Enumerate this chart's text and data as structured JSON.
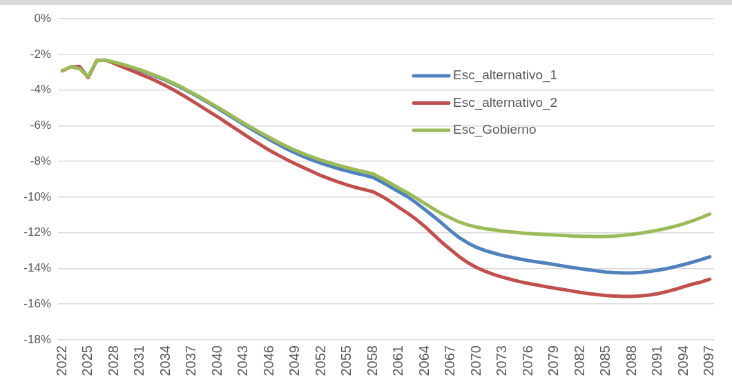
{
  "chart_data": {
    "type": "line",
    "categories": [
      "2022",
      null,
      null,
      "2025",
      null,
      null,
      "2028",
      null,
      null,
      "2031",
      null,
      null,
      "2034",
      null,
      null,
      "2037",
      null,
      null,
      "2040",
      null,
      null,
      "2043",
      null,
      null,
      "2046",
      null,
      null,
      "2049",
      null,
      null,
      "2052",
      null,
      null,
      "2055",
      null,
      null,
      "2058",
      null,
      null,
      "2061",
      null,
      null,
      "2064",
      null,
      null,
      "2067",
      null,
      null,
      "2070",
      null,
      null,
      "2073",
      null,
      null,
      "2076",
      null,
      null,
      "2079",
      null,
      null,
      "2082",
      null,
      null,
      "2085",
      null,
      null,
      "2088",
      null,
      null,
      "2091",
      null,
      null,
      "2094",
      null,
      null,
      "2097"
    ],
    "ylim": [
      -18,
      0
    ],
    "yticks": [
      {
        "value": 0,
        "label": "0%"
      },
      {
        "value": -2,
        "label": "-2%"
      },
      {
        "value": -4,
        "label": "-4%"
      },
      {
        "value": -6,
        "label": "-6%"
      },
      {
        "value": -8,
        "label": "-8%"
      },
      {
        "value": -10,
        "label": "-10%"
      },
      {
        "value": -12,
        "label": "-12%"
      },
      {
        "value": -14,
        "label": "-14%"
      },
      {
        "value": -16,
        "label": "-16%"
      },
      {
        "value": -18,
        "label": "-18%"
      }
    ],
    "grid": "y",
    "legend": "top right",
    "marker": "none",
    "line_style": "solid",
    "series": [
      {
        "name": "Esc_alternativo_1",
        "color": "#4f81bd",
        "values": [
          null,
          null,
          null,
          null,
          null,
          null,
          null,
          null,
          -2.73,
          -2.89,
          -3.07,
          -3.26,
          -3.46,
          -3.68,
          -3.92,
          -4.18,
          -4.45,
          -4.73,
          -5.02,
          -5.32,
          -5.62,
          -5.92,
          -6.21,
          -6.5,
          -6.78,
          -7.04,
          -7.3,
          -7.53,
          -7.74,
          -7.93,
          -8.1,
          -8.26,
          -8.41,
          -8.54,
          -8.66,
          -8.77,
          -8.9,
          -9.15,
          -9.42,
          -9.7,
          -9.98,
          -10.32,
          -10.7,
          -11.08,
          -11.48,
          -11.9,
          -12.28,
          -12.58,
          -12.82,
          -13.0,
          -13.14,
          -13.27,
          -13.37,
          -13.47,
          -13.56,
          -13.63,
          -13.7,
          -13.78,
          -13.86,
          -13.94,
          -14.01,
          -14.08,
          -14.14,
          -14.2,
          -14.23,
          -14.25,
          -14.25,
          -14.22,
          -14.17,
          -14.1,
          -14.01,
          -13.9,
          -13.78,
          -13.65,
          -13.5,
          -13.35
        ]
      },
      {
        "name": "Esc_alternativo_2",
        "color": "#c0504d",
        "values": [
          -2.92,
          -2.7,
          -2.68,
          -3.3,
          -2.33,
          -2.32,
          -2.5,
          -2.7,
          -2.9,
          -3.1,
          -3.3,
          -3.52,
          -3.76,
          -4.02,
          -4.3,
          -4.6,
          -4.9,
          -5.2,
          -5.5,
          -5.82,
          -6.14,
          -6.46,
          -6.78,
          -7.08,
          -7.38,
          -7.64,
          -7.9,
          -8.14,
          -8.36,
          -8.58,
          -8.8,
          -8.98,
          -9.16,
          -9.32,
          -9.46,
          -9.58,
          -9.7,
          -9.95,
          -10.25,
          -10.58,
          -10.9,
          -11.25,
          -11.65,
          -12.1,
          -12.55,
          -12.95,
          -13.35,
          -13.68,
          -13.95,
          -14.16,
          -14.34,
          -14.49,
          -14.62,
          -14.74,
          -14.84,
          -14.93,
          -15.02,
          -15.1,
          -15.18,
          -15.26,
          -15.34,
          -15.41,
          -15.47,
          -15.52,
          -15.55,
          -15.57,
          -15.57,
          -15.54,
          -15.49,
          -15.41,
          -15.3,
          -15.17,
          -15.02,
          -14.88,
          -14.76,
          -14.6
        ]
      },
      {
        "name": "Esc_Gobierno",
        "color": "#9bbb59",
        "values": [
          -2.9,
          -2.7,
          -2.8,
          -3.25,
          -2.35,
          -2.32,
          -2.43,
          -2.56,
          -2.7,
          -2.86,
          -3.04,
          -3.22,
          -3.42,
          -3.64,
          -3.88,
          -4.14,
          -4.4,
          -4.68,
          -4.96,
          -5.25,
          -5.55,
          -5.84,
          -6.12,
          -6.4,
          -6.66,
          -6.92,
          -7.16,
          -7.38,
          -7.58,
          -7.76,
          -7.93,
          -8.08,
          -8.22,
          -8.35,
          -8.47,
          -8.58,
          -8.7,
          -8.95,
          -9.22,
          -9.5,
          -9.76,
          -10.05,
          -10.36,
          -10.66,
          -10.94,
          -11.18,
          -11.4,
          -11.56,
          -11.68,
          -11.77,
          -11.84,
          -11.9,
          -11.95,
          -12.0,
          -12.04,
          -12.07,
          -12.1,
          -12.13,
          -12.15,
          -12.17,
          -12.19,
          -12.2,
          -12.21,
          -12.2,
          -12.18,
          -12.14,
          -12.09,
          -12.02,
          -11.94,
          -11.85,
          -11.75,
          -11.63,
          -11.49,
          -11.33,
          -11.15,
          -10.95
        ]
      }
    ]
  }
}
